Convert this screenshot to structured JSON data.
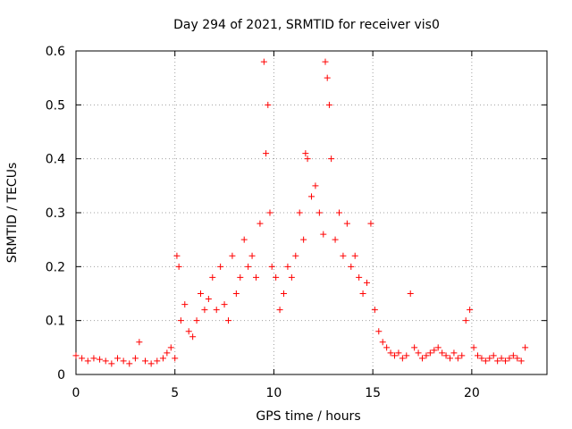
{
  "chart_data": {
    "type": "scatter",
    "title": "Day 294 of 2021, SRMTID for receiver vis0",
    "xlabel": "GPS time / hours",
    "ylabel": "SRMTID / TECUs",
    "xlim": [
      0,
      23.8
    ],
    "ylim": [
      0,
      0.6
    ],
    "xticks": [
      0,
      5,
      10,
      15,
      20
    ],
    "yticks": [
      0,
      0.1,
      0.2,
      0.3,
      0.4,
      0.5,
      0.6
    ],
    "xtick_labels": [
      "0",
      "5",
      "10",
      "15",
      "20"
    ],
    "ytick_labels": [
      "0",
      "0.1",
      "0.2",
      "0.3",
      "0.4",
      "0.5",
      "0.6"
    ],
    "grid": true,
    "marker": "plus",
    "color": "#ff0000",
    "series": [
      {
        "name": "vis0",
        "x": [
          0.0,
          0.3,
          0.6,
          0.9,
          1.2,
          1.5,
          1.8,
          2.1,
          2.4,
          2.7,
          3.0,
          3.2,
          3.5,
          3.8,
          4.1,
          4.4,
          4.6,
          4.8,
          5.0,
          5.1,
          5.2,
          5.3,
          5.5,
          5.7,
          5.9,
          6.1,
          6.3,
          6.5,
          6.7,
          6.9,
          7.1,
          7.3,
          7.5,
          7.7,
          7.9,
          8.1,
          8.3,
          8.5,
          8.7,
          8.9,
          9.1,
          9.3,
          9.5,
          9.6,
          9.7,
          9.8,
          9.9,
          10.1,
          10.3,
          10.5,
          10.7,
          10.9,
          11.1,
          11.3,
          11.5,
          11.6,
          11.7,
          11.9,
          12.1,
          12.3,
          12.5,
          12.6,
          12.7,
          12.8,
          12.9,
          13.1,
          13.3,
          13.5,
          13.7,
          13.9,
          14.1,
          14.3,
          14.5,
          14.7,
          14.9,
          15.1,
          15.3,
          15.5,
          15.7,
          15.9,
          16.1,
          16.3,
          16.5,
          16.7,
          16.9,
          17.1,
          17.3,
          17.5,
          17.7,
          17.9,
          18.1,
          18.3,
          18.5,
          18.7,
          18.9,
          19.1,
          19.3,
          19.5,
          19.7,
          19.9,
          20.1,
          20.3,
          20.5,
          20.7,
          20.9,
          21.1,
          21.3,
          21.5,
          21.7,
          21.9,
          22.1,
          22.3,
          22.5,
          22.7
        ],
        "y": [
          0.035,
          0.03,
          0.025,
          0.03,
          0.028,
          0.025,
          0.02,
          0.03,
          0.025,
          0.02,
          0.03,
          0.06,
          0.025,
          0.02,
          0.025,
          0.03,
          0.04,
          0.05,
          0.03,
          0.22,
          0.2,
          0.1,
          0.13,
          0.08,
          0.07,
          0.1,
          0.15,
          0.12,
          0.14,
          0.18,
          0.12,
          0.2,
          0.13,
          0.1,
          0.22,
          0.15,
          0.18,
          0.25,
          0.2,
          0.22,
          0.18,
          0.28,
          0.58,
          0.41,
          0.5,
          0.3,
          0.2,
          0.18,
          0.12,
          0.15,
          0.2,
          0.18,
          0.22,
          0.3,
          0.25,
          0.41,
          0.4,
          0.33,
          0.35,
          0.3,
          0.26,
          0.58,
          0.55,
          0.5,
          0.4,
          0.25,
          0.3,
          0.22,
          0.28,
          0.2,
          0.22,
          0.18,
          0.15,
          0.17,
          0.28,
          0.12,
          0.08,
          0.06,
          0.05,
          0.04,
          0.035,
          0.04,
          0.03,
          0.035,
          0.15,
          0.05,
          0.04,
          0.03,
          0.035,
          0.04,
          0.045,
          0.05,
          0.04,
          0.035,
          0.03,
          0.04,
          0.03,
          0.035,
          0.1,
          0.12,
          0.05,
          0.035,
          0.03,
          0.025,
          0.03,
          0.035,
          0.025,
          0.03,
          0.025,
          0.03,
          0.035,
          0.03,
          0.025,
          0.05
        ]
      }
    ]
  }
}
